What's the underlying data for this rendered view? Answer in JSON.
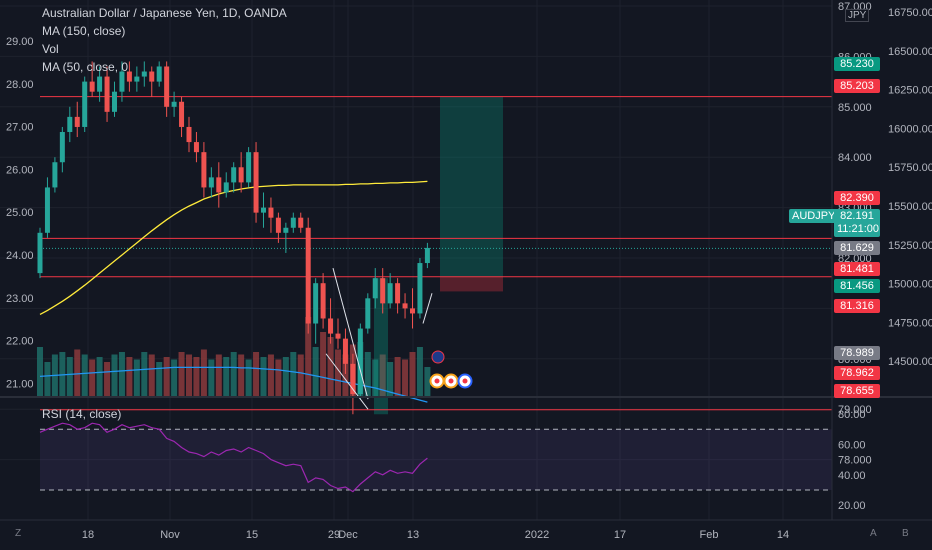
{
  "legend": {
    "title": "Australian Dollar / Japanese Yen, 1D, OANDA",
    "ma150": "MA (150, close)",
    "vol": "Vol",
    "ma50": "MA (50, close, 0"
  },
  "rsi_label": "RSI (14, close)",
  "unit": "JPY",
  "corners": {
    "left_bottom": "Z",
    "right_a": "A",
    "right_b": "B"
  },
  "colors": {
    "up": "#26a69a",
    "down": "#ef5350",
    "ma150": "#2196f3",
    "ma50": "#ffeb3b",
    "rsi": "#9c27b0",
    "bg": "#131722"
  },
  "chart_data": {
    "type": "candlestick",
    "title": "Australian Dollar / Japanese Yen, 1D, OANDA",
    "price_ticks": [
      "87.000",
      "86.000",
      "85.000",
      "84.000",
      "83.000",
      "82.000",
      "81.000",
      "80.000",
      "79.000",
      "78.000"
    ],
    "ylim": [
      78.4,
      87.1
    ],
    "left_ticks": [
      "29.00",
      "28.00",
      "27.00",
      "26.00",
      "25.00",
      "24.00",
      "23.00",
      "22.00",
      "21.00"
    ],
    "right_ticks": [
      "16750.00",
      "16500.00",
      "16250.00",
      "16000.00",
      "15750.00",
      "15500.00",
      "15250.00",
      "15000.00",
      "14750.00",
      "14500.00"
    ],
    "x_ticks": [
      "18",
      "Nov",
      "15",
      "29",
      "Dec",
      "13",
      "2022",
      "17",
      "Feb",
      "14"
    ],
    "rsi_ticks": [
      "80.00",
      "60.00",
      "40.00",
      "20.00"
    ],
    "rsi_levels": [
      70,
      30
    ],
    "horizontal_levels": [
      85.203,
      82.39,
      81.629,
      78.989
    ],
    "price_tags": [
      {
        "label": "85.230",
        "color": "#089981"
      },
      {
        "label": "85.203",
        "color": "#f23645"
      },
      {
        "label": "82.390",
        "color": "#f23645"
      },
      {
        "label": "81.629",
        "color": "#787b86"
      },
      {
        "label": "81.481",
        "color": "#f23645"
      },
      {
        "label": "81.456",
        "color": "#089981"
      },
      {
        "label": "81.316",
        "color": "#f23645"
      },
      {
        "label": "78.989",
        "color": "#787b86"
      },
      {
        "label": "78.962",
        "color": "#f23645"
      },
      {
        "label": "78.655",
        "color": "#f23645"
      }
    ],
    "current": {
      "symbol": "AUDJPY",
      "price": "82.191",
      "countdown": "11:21:00"
    },
    "position": {
      "entry": 81.629,
      "target": 85.203,
      "stop": 81.456
    },
    "candles": [
      {
        "o": 81.7,
        "h": 82.6,
        "l": 81.6,
        "c": 82.5
      },
      {
        "o": 82.5,
        "h": 83.6,
        "l": 82.4,
        "c": 83.4
      },
      {
        "o": 83.4,
        "h": 84.0,
        "l": 83.3,
        "c": 83.9
      },
      {
        "o": 83.9,
        "h": 84.6,
        "l": 83.7,
        "c": 84.5
      },
      {
        "o": 84.5,
        "h": 85.0,
        "l": 84.3,
        "c": 84.8
      },
      {
        "o": 84.8,
        "h": 85.1,
        "l": 84.4,
        "c": 84.6
      },
      {
        "o": 84.6,
        "h": 85.6,
        "l": 84.5,
        "c": 85.5
      },
      {
        "o": 85.5,
        "h": 85.9,
        "l": 85.2,
        "c": 85.3
      },
      {
        "o": 85.3,
        "h": 85.8,
        "l": 85.1,
        "c": 85.6
      },
      {
        "o": 85.6,
        "h": 85.8,
        "l": 84.7,
        "c": 84.9
      },
      {
        "o": 84.9,
        "h": 85.5,
        "l": 84.8,
        "c": 85.3
      },
      {
        "o": 85.3,
        "h": 85.9,
        "l": 85.1,
        "c": 85.7
      },
      {
        "o": 85.7,
        "h": 85.9,
        "l": 85.3,
        "c": 85.5
      },
      {
        "o": 85.5,
        "h": 85.8,
        "l": 85.3,
        "c": 85.6
      },
      {
        "o": 85.6,
        "h": 85.9,
        "l": 85.4,
        "c": 85.7
      },
      {
        "o": 85.7,
        "h": 85.8,
        "l": 85.2,
        "c": 85.5
      },
      {
        "o": 85.5,
        "h": 85.9,
        "l": 85.4,
        "c": 85.8
      },
      {
        "o": 85.8,
        "h": 85.9,
        "l": 84.8,
        "c": 85.0
      },
      {
        "o": 85.0,
        "h": 85.3,
        "l": 84.8,
        "c": 85.1
      },
      {
        "o": 85.1,
        "h": 85.2,
        "l": 84.4,
        "c": 84.6
      },
      {
        "o": 84.6,
        "h": 84.8,
        "l": 84.1,
        "c": 84.3
      },
      {
        "o": 84.3,
        "h": 84.5,
        "l": 83.9,
        "c": 84.1
      },
      {
        "o": 84.1,
        "h": 84.3,
        "l": 83.2,
        "c": 83.4
      },
      {
        "o": 83.4,
        "h": 83.8,
        "l": 83.2,
        "c": 83.6
      },
      {
        "o": 83.6,
        "h": 83.9,
        "l": 83.0,
        "c": 83.3
      },
      {
        "o": 83.3,
        "h": 83.7,
        "l": 83.2,
        "c": 83.5
      },
      {
        "o": 83.5,
        "h": 83.9,
        "l": 83.3,
        "c": 83.8
      },
      {
        "o": 83.8,
        "h": 84.1,
        "l": 83.3,
        "c": 83.5
      },
      {
        "o": 83.5,
        "h": 84.2,
        "l": 83.4,
        "c": 84.1
      },
      {
        "o": 84.1,
        "h": 84.3,
        "l": 82.7,
        "c": 82.9
      },
      {
        "o": 82.9,
        "h": 83.3,
        "l": 82.6,
        "c": 83.0
      },
      {
        "o": 83.0,
        "h": 83.2,
        "l": 82.5,
        "c": 82.8
      },
      {
        "o": 82.8,
        "h": 82.9,
        "l": 82.3,
        "c": 82.5
      },
      {
        "o": 82.5,
        "h": 82.7,
        "l": 82.1,
        "c": 82.6
      },
      {
        "o": 82.6,
        "h": 82.9,
        "l": 82.5,
        "c": 82.8
      },
      {
        "o": 82.8,
        "h": 82.9,
        "l": 82.5,
        "c": 82.6
      },
      {
        "o": 82.6,
        "h": 82.8,
        "l": 80.5,
        "c": 80.7
      },
      {
        "o": 80.7,
        "h": 81.6,
        "l": 80.3,
        "c": 81.5
      },
      {
        "o": 81.5,
        "h": 81.7,
        "l": 80.6,
        "c": 80.8
      },
      {
        "o": 80.8,
        "h": 81.2,
        "l": 80.3,
        "c": 80.5
      },
      {
        "o": 80.5,
        "h": 80.8,
        "l": 80.2,
        "c": 80.4
      },
      {
        "o": 80.4,
        "h": 80.6,
        "l": 79.7,
        "c": 79.9
      },
      {
        "o": 79.9,
        "h": 80.1,
        "l": 78.9,
        "c": 79.3
      },
      {
        "o": 79.3,
        "h": 80.7,
        "l": 79.2,
        "c": 80.6
      },
      {
        "o": 80.6,
        "h": 81.3,
        "l": 80.5,
        "c": 81.2
      },
      {
        "o": 81.2,
        "h": 81.8,
        "l": 81.0,
        "c": 81.6
      },
      {
        "o": 81.6,
        "h": 81.8,
        "l": 80.9,
        "c": 81.1
      },
      {
        "o": 81.1,
        "h": 81.7,
        "l": 81.0,
        "c": 81.5
      },
      {
        "o": 81.5,
        "h": 81.6,
        "l": 80.9,
        "c": 81.1
      },
      {
        "o": 81.1,
        "h": 81.3,
        "l": 80.8,
        "c": 81.0
      },
      {
        "o": 81.0,
        "h": 81.4,
        "l": 80.6,
        "c": 80.9
      },
      {
        "o": 80.9,
        "h": 82.0,
        "l": 80.8,
        "c": 81.9
      },
      {
        "o": 81.9,
        "h": 82.3,
        "l": 81.8,
        "c": 82.2
      }
    ],
    "volume": [
      1.0,
      0.7,
      0.85,
      0.9,
      0.8,
      0.95,
      0.85,
      0.75,
      0.8,
      0.7,
      0.85,
      0.9,
      0.8,
      0.75,
      0.9,
      0.85,
      0.7,
      0.8,
      0.75,
      0.9,
      0.85,
      0.8,
      0.95,
      0.75,
      0.85,
      0.8,
      0.9,
      0.85,
      0.75,
      0.9,
      0.8,
      0.85,
      0.75,
      0.8,
      0.9,
      0.85,
      1.6,
      1.0,
      1.3,
      1.2,
      0.95,
      0.85,
      1.05,
      1.1,
      0.9,
      0.75,
      0.85,
      0.7,
      0.8,
      0.75,
      0.9,
      1.0,
      0.6
    ],
    "ma150": [
      79.65,
      79.66,
      79.67,
      79.68,
      79.69,
      79.7,
      79.71,
      79.72,
      79.73,
      79.74,
      79.75,
      79.76,
      79.77,
      79.78,
      79.79,
      79.8,
      79.81,
      79.82,
      79.83,
      79.83,
      79.83,
      79.83,
      79.83,
      79.83,
      79.83,
      79.83,
      79.83,
      79.82,
      79.82,
      79.81,
      79.8,
      79.79,
      79.78,
      79.76,
      79.74,
      79.72,
      79.69,
      79.66,
      79.63,
      79.6,
      79.57,
      79.54,
      79.51,
      79.48,
      79.45,
      79.42,
      79.38,
      79.34,
      79.3,
      79.26,
      79.22,
      79.18,
      79.14
    ],
    "ma50": [
      80.88,
      80.96,
      81.05,
      81.14,
      81.24,
      81.35,
      81.46,
      81.58,
      81.7,
      81.82,
      81.94,
      82.06,
      82.18,
      82.3,
      82.42,
      82.54,
      82.65,
      82.76,
      82.86,
      82.95,
      83.03,
      83.1,
      83.17,
      83.22,
      83.27,
      83.31,
      83.34,
      83.37,
      83.39,
      83.41,
      83.42,
      83.43,
      83.44,
      83.44,
      83.45,
      83.45,
      83.45,
      83.45,
      83.45,
      83.45,
      83.45,
      83.46,
      83.46,
      83.47,
      83.47,
      83.48,
      83.48,
      83.49,
      83.49,
      83.5,
      83.5,
      83.51,
      83.52
    ],
    "rsi": [
      68,
      70,
      72,
      74,
      73,
      70,
      71,
      74,
      73,
      68,
      70,
      73,
      71,
      72,
      73,
      71,
      70,
      64,
      62,
      58,
      55,
      54,
      52,
      55,
      53,
      56,
      57,
      55,
      58,
      56,
      54,
      50,
      48,
      46,
      47,
      46,
      35,
      38,
      37,
      33,
      31,
      32,
      29,
      34,
      38,
      42,
      40,
      43,
      41,
      42,
      41,
      47,
      51
    ]
  }
}
